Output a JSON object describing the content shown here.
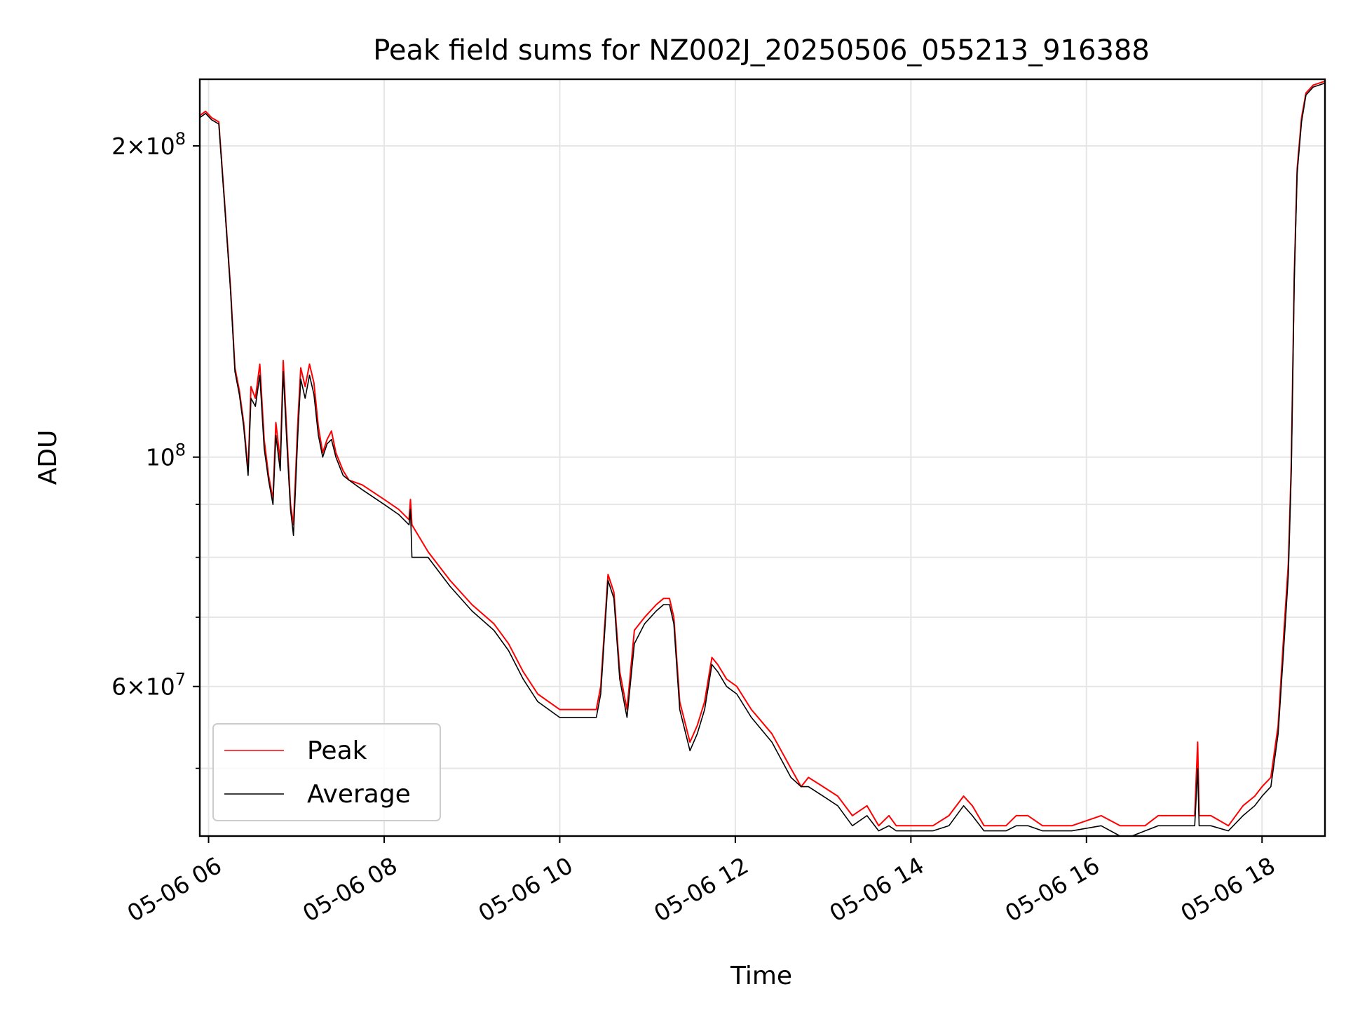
{
  "chart_data": {
    "type": "line",
    "title": "Peak field sums for NZ002J_20250506_055213_916388",
    "xlabel": "Time",
    "ylabel": "ADU",
    "xscale": "time",
    "yscale": "log",
    "xlim": [
      "2025-05-06 05:54",
      "2025-05-06 18:43"
    ],
    "ylim": [
      43000000,
      232000000
    ],
    "grid": true,
    "legend": "lower-left",
    "x_ticks": [
      "05-06 06",
      "05-06 08",
      "05-06 10",
      "05-06 12",
      "05-06 14",
      "05-06 16",
      "05-06 18"
    ],
    "y_ticks": [
      {
        "value": 200000000,
        "mantissa": "2",
        "exp": "8"
      },
      {
        "value": 100000000,
        "mantissa": "",
        "exp": "8"
      },
      {
        "value": 60000000,
        "mantissa": "6",
        "exp": "7"
      }
    ],
    "y_minor_ticks": [
      50000000,
      70000000,
      80000000,
      90000000
    ],
    "series": [
      {
        "name": "Peak",
        "color": "#ff0000",
        "x": [
          "2025-05-06 05:54",
          "2025-05-06 05:58",
          "2025-05-06 06:02",
          "2025-05-06 06:07",
          "2025-05-06 06:11",
          "2025-05-06 06:15",
          "2025-05-06 06:18",
          "2025-05-06 06:21",
          "2025-05-06 06:24",
          "2025-05-06 06:27",
          "2025-05-06 06:29",
          "2025-05-06 06:32",
          "2025-05-06 06:35",
          "2025-05-06 06:38",
          "2025-05-06 06:41",
          "2025-05-06 06:44",
          "2025-05-06 06:46",
          "2025-05-06 06:49",
          "2025-05-06 06:51",
          "2025-05-06 06:54",
          "2025-05-06 06:56",
          "2025-05-06 06:58",
          "2025-05-06 07:01",
          "2025-05-06 07:03",
          "2025-05-06 07:06",
          "2025-05-06 07:09",
          "2025-05-06 07:12",
          "2025-05-06 07:15",
          "2025-05-06 07:18",
          "2025-05-06 07:21",
          "2025-05-06 07:24",
          "2025-05-06 07:27",
          "2025-05-06 07:32",
          "2025-05-06 07:36",
          "2025-05-06 07:45",
          "2025-05-06 08:00",
          "2025-05-06 08:10",
          "2025-05-06 08:17",
          "2025-05-06 08:18",
          "2025-05-06 08:19",
          "2025-05-06 08:30",
          "2025-05-06 08:45",
          "2025-05-06 09:00",
          "2025-05-06 09:15",
          "2025-05-06 09:25",
          "2025-05-06 09:35",
          "2025-05-06 09:45",
          "2025-05-06 10:00",
          "2025-05-06 10:20",
          "2025-05-06 10:25",
          "2025-05-06 10:28",
          "2025-05-06 10:33",
          "2025-05-06 10:37",
          "2025-05-06 10:41",
          "2025-05-06 10:46",
          "2025-05-06 10:51",
          "2025-05-06 10:58",
          "2025-05-06 11:06",
          "2025-05-06 11:11",
          "2025-05-06 11:15",
          "2025-05-06 11:18",
          "2025-05-06 11:22",
          "2025-05-06 11:29",
          "2025-05-06 11:34",
          "2025-05-06 11:39",
          "2025-05-06 11:44",
          "2025-05-06 11:48",
          "2025-05-06 11:54",
          "2025-05-06 12:01",
          "2025-05-06 12:11",
          "2025-05-06 12:25",
          "2025-05-06 12:38",
          "2025-05-06 12:45",
          "2025-05-06 12:50",
          "2025-05-06 13:00",
          "2025-05-06 13:10",
          "2025-05-06 13:20",
          "2025-05-06 13:30",
          "2025-05-06 13:38",
          "2025-05-06 13:45",
          "2025-05-06 13:50",
          "2025-05-06 14:00",
          "2025-05-06 14:15",
          "2025-05-06 14:26",
          "2025-05-06 14:36",
          "2025-05-06 14:42",
          "2025-05-06 14:50",
          "2025-05-06 14:56",
          "2025-05-06 15:05",
          "2025-05-06 15:12",
          "2025-05-06 15:20",
          "2025-05-06 15:30",
          "2025-05-06 15:40",
          "2025-05-06 15:50",
          "2025-05-06 16:10",
          "2025-05-06 16:23",
          "2025-05-06 16:31",
          "2025-05-06 16:40",
          "2025-05-06 16:49",
          "2025-05-06 17:00",
          "2025-05-06 17:12",
          "2025-05-06 17:14",
          "2025-05-06 17:16",
          "2025-05-06 17:17",
          "2025-05-06 17:20",
          "2025-05-06 17:25",
          "2025-05-06 17:37",
          "2025-05-06 17:47",
          "2025-05-06 17:55",
          "2025-05-06 18:00",
          "2025-05-06 18:06",
          "2025-05-06 18:11",
          "2025-05-06 18:15",
          "2025-05-06 18:18",
          "2025-05-06 18:20",
          "2025-05-06 18:22",
          "2025-05-06 18:24",
          "2025-05-06 18:27",
          "2025-05-06 18:30",
          "2025-05-06 18:35",
          "2025-05-06 18:43"
        ],
        "y": [
          214000000,
          216000000,
          213000000,
          211000000,
          176000000,
          146000000,
          122000000,
          116000000,
          108000000,
          97000000,
          117000000,
          114000000,
          123000000,
          104000000,
          96000000,
          91000000,
          108000000,
          99000000,
          124000000,
          102000000,
          90000000,
          86000000,
          108000000,
          122000000,
          117000000,
          123000000,
          118000000,
          107000000,
          101000000,
          104000000,
          106000000,
          101000000,
          97000000,
          95000000,
          94000000,
          91000000,
          89000000,
          87000000,
          91000000,
          86000000,
          81000000,
          76000000,
          72000000,
          69000000,
          66000000,
          62000000,
          59000000,
          57000000,
          57000000,
          57000000,
          60000000,
          77000000,
          74000000,
          62000000,
          57000000,
          68000000,
          70000000,
          72000000,
          73000000,
          73000000,
          70000000,
          58000000,
          53000000,
          55000000,
          58000000,
          64000000,
          63000000,
          61000000,
          60000000,
          57000000,
          54000000,
          50000000,
          48000000,
          49000000,
          48000000,
          47000000,
          45000000,
          46000000,
          44000000,
          45000000,
          44000000,
          44000000,
          44000000,
          45000000,
          47000000,
          46000000,
          44000000,
          44000000,
          44000000,
          45000000,
          45000000,
          44000000,
          44000000,
          44000000,
          45000000,
          44000000,
          44000000,
          44000000,
          45000000,
          45000000,
          45000000,
          45000000,
          53000000,
          45000000,
          45000000,
          45000000,
          44000000,
          46000000,
          47000000,
          48000000,
          49000000,
          55000000,
          68000000,
          79000000,
          99000000,
          150000000,
          190000000,
          213000000,
          225000000,
          229000000,
          231000000
        ]
      },
      {
        "name": "Average",
        "color": "#000000",
        "x": [
          "2025-05-06 05:54",
          "2025-05-06 05:58",
          "2025-05-06 06:02",
          "2025-05-06 06:07",
          "2025-05-06 06:11",
          "2025-05-06 06:15",
          "2025-05-06 06:18",
          "2025-05-06 06:21",
          "2025-05-06 06:24",
          "2025-05-06 06:27",
          "2025-05-06 06:29",
          "2025-05-06 06:32",
          "2025-05-06 06:35",
          "2025-05-06 06:38",
          "2025-05-06 06:41",
          "2025-05-06 06:44",
          "2025-05-06 06:46",
          "2025-05-06 06:49",
          "2025-05-06 06:51",
          "2025-05-06 06:54",
          "2025-05-06 06:56",
          "2025-05-06 06:58",
          "2025-05-06 07:01",
          "2025-05-06 07:03",
          "2025-05-06 07:06",
          "2025-05-06 07:09",
          "2025-05-06 07:12",
          "2025-05-06 07:15",
          "2025-05-06 07:18",
          "2025-05-06 07:21",
          "2025-05-06 07:24",
          "2025-05-06 07:27",
          "2025-05-06 07:32",
          "2025-05-06 07:36",
          "2025-05-06 07:45",
          "2025-05-06 08:00",
          "2025-05-06 08:10",
          "2025-05-06 08:17",
          "2025-05-06 08:18",
          "2025-05-06 08:19",
          "2025-05-06 08:30",
          "2025-05-06 08:45",
          "2025-05-06 09:00",
          "2025-05-06 09:15",
          "2025-05-06 09:25",
          "2025-05-06 09:35",
          "2025-05-06 09:45",
          "2025-05-06 10:00",
          "2025-05-06 10:20",
          "2025-05-06 10:25",
          "2025-05-06 10:28",
          "2025-05-06 10:33",
          "2025-05-06 10:37",
          "2025-05-06 10:41",
          "2025-05-06 10:46",
          "2025-05-06 10:51",
          "2025-05-06 10:58",
          "2025-05-06 11:06",
          "2025-05-06 11:11",
          "2025-05-06 11:15",
          "2025-05-06 11:18",
          "2025-05-06 11:22",
          "2025-05-06 11:29",
          "2025-05-06 11:34",
          "2025-05-06 11:39",
          "2025-05-06 11:44",
          "2025-05-06 11:48",
          "2025-05-06 11:54",
          "2025-05-06 12:01",
          "2025-05-06 12:11",
          "2025-05-06 12:25",
          "2025-05-06 12:38",
          "2025-05-06 12:45",
          "2025-05-06 12:50",
          "2025-05-06 13:00",
          "2025-05-06 13:10",
          "2025-05-06 13:20",
          "2025-05-06 13:30",
          "2025-05-06 13:38",
          "2025-05-06 13:45",
          "2025-05-06 13:50",
          "2025-05-06 14:00",
          "2025-05-06 14:15",
          "2025-05-06 14:26",
          "2025-05-06 14:36",
          "2025-05-06 14:42",
          "2025-05-06 14:50",
          "2025-05-06 14:56",
          "2025-05-06 15:05",
          "2025-05-06 15:12",
          "2025-05-06 15:20",
          "2025-05-06 15:30",
          "2025-05-06 15:40",
          "2025-05-06 15:50",
          "2025-05-06 16:10",
          "2025-05-06 16:23",
          "2025-05-06 16:31",
          "2025-05-06 16:40",
          "2025-05-06 16:49",
          "2025-05-06 17:00",
          "2025-05-06 17:12",
          "2025-05-06 17:14",
          "2025-05-06 17:16",
          "2025-05-06 17:17",
          "2025-05-06 17:20",
          "2025-05-06 17:25",
          "2025-05-06 17:37",
          "2025-05-06 17:47",
          "2025-05-06 17:55",
          "2025-05-06 18:00",
          "2025-05-06 18:06",
          "2025-05-06 18:11",
          "2025-05-06 18:15",
          "2025-05-06 18:18",
          "2025-05-06 18:20",
          "2025-05-06 18:22",
          "2025-05-06 18:24",
          "2025-05-06 18:27",
          "2025-05-06 18:30",
          "2025-05-06 18:35",
          "2025-05-06 18:43"
        ],
        "y": [
          213000000,
          215000000,
          212000000,
          210000000,
          175000000,
          145000000,
          121000000,
          115000000,
          107000000,
          96000000,
          114000000,
          112000000,
          120000000,
          102000000,
          95000000,
          90000000,
          105000000,
          97000000,
          121000000,
          100000000,
          89000000,
          84000000,
          105000000,
          119000000,
          114000000,
          120000000,
          115000000,
          105000000,
          100000000,
          103000000,
          104000000,
          100000000,
          96000000,
          95000000,
          93000000,
          90000000,
          88000000,
          86000000,
          89000000,
          80000000,
          80000000,
          75000000,
          71000000,
          68000000,
          65000000,
          61000000,
          58000000,
          56000000,
          56000000,
          56000000,
          59000000,
          76000000,
          73000000,
          61000000,
          56000000,
          66000000,
          69000000,
          71000000,
          72000000,
          72000000,
          69000000,
          57000000,
          52000000,
          54000000,
          57000000,
          63000000,
          62000000,
          60000000,
          59000000,
          56000000,
          53000000,
          49000000,
          48000000,
          48000000,
          47000000,
          46000000,
          44000000,
          45000000,
          43500000,
          44000000,
          43500000,
          43500000,
          43500000,
          44000000,
          46000000,
          45000000,
          43500000,
          43500000,
          43500000,
          44000000,
          44000000,
          43500000,
          43500000,
          43500000,
          44000000,
          43000000,
          43000000,
          43500000,
          44000000,
          44000000,
          44000000,
          44000000,
          50000000,
          44000000,
          44000000,
          44000000,
          43500000,
          45000000,
          46000000,
          47000000,
          48000000,
          54000000,
          66000000,
          77000000,
          97000000,
          148000000,
          188000000,
          211000000,
          224000000,
          228000000,
          230000000
        ]
      }
    ]
  }
}
